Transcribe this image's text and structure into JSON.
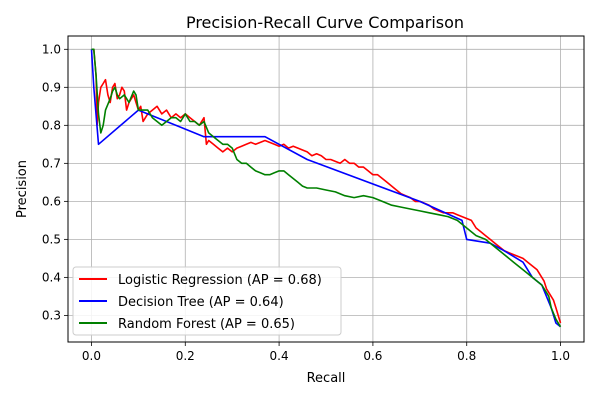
{
  "chart_data": {
    "type": "line",
    "title": "Precision-Recall Curve Comparison",
    "xlabel": "Recall",
    "ylabel": "Precision",
    "xlim": [
      -0.05,
      1.05
    ],
    "ylim": [
      0.23,
      1.035
    ],
    "xticks": [
      "0.0",
      "0.2",
      "0.4",
      "0.6",
      "0.8",
      "1.0"
    ],
    "yticks": [
      "0.3",
      "0.4",
      "0.5",
      "0.6",
      "0.7",
      "0.8",
      "0.9",
      "1.0"
    ],
    "grid": true,
    "legend_position": "lower-left",
    "series": [
      {
        "name": "Logistic Regression (AP = 0.68)",
        "color": "#ff0000",
        "x": [
          0.0,
          0.005,
          0.01,
          0.012,
          0.015,
          0.02,
          0.025,
          0.03,
          0.035,
          0.04,
          0.045,
          0.05,
          0.055,
          0.06,
          0.065,
          0.07,
          0.075,
          0.08,
          0.085,
          0.09,
          0.095,
          0.1,
          0.105,
          0.11,
          0.115,
          0.12,
          0.13,
          0.14,
          0.15,
          0.16,
          0.17,
          0.18,
          0.19,
          0.2,
          0.21,
          0.22,
          0.23,
          0.24,
          0.245,
          0.25,
          0.26,
          0.27,
          0.28,
          0.29,
          0.3,
          0.31,
          0.32,
          0.33,
          0.34,
          0.35,
          0.36,
          0.37,
          0.38,
          0.39,
          0.4,
          0.41,
          0.42,
          0.43,
          0.44,
          0.45,
          0.46,
          0.47,
          0.48,
          0.49,
          0.5,
          0.51,
          0.52,
          0.53,
          0.54,
          0.55,
          0.56,
          0.57,
          0.58,
          0.59,
          0.6,
          0.61,
          0.62,
          0.63,
          0.64,
          0.65,
          0.66,
          0.67,
          0.68,
          0.69,
          0.7,
          0.71,
          0.72,
          0.73,
          0.74,
          0.75,
          0.76,
          0.77,
          0.78,
          0.79,
          0.8,
          0.81,
          0.82,
          0.83,
          0.84,
          0.85,
          0.86,
          0.87,
          0.88,
          0.89,
          0.9,
          0.91,
          0.92,
          0.93,
          0.94,
          0.95,
          0.96,
          0.965,
          0.97,
          0.975,
          0.98,
          0.985,
          0.99,
          0.995,
          1.0
        ],
        "y": [
          1.0,
          1.0,
          0.93,
          0.8,
          0.86,
          0.9,
          0.91,
          0.92,
          0.88,
          0.86,
          0.9,
          0.91,
          0.87,
          0.88,
          0.9,
          0.89,
          0.84,
          0.86,
          0.87,
          0.88,
          0.86,
          0.84,
          0.85,
          0.81,
          0.82,
          0.83,
          0.84,
          0.85,
          0.83,
          0.84,
          0.82,
          0.83,
          0.82,
          0.83,
          0.82,
          0.81,
          0.8,
          0.82,
          0.75,
          0.76,
          0.75,
          0.74,
          0.73,
          0.74,
          0.73,
          0.74,
          0.745,
          0.75,
          0.755,
          0.75,
          0.755,
          0.76,
          0.755,
          0.75,
          0.745,
          0.75,
          0.74,
          0.745,
          0.74,
          0.735,
          0.73,
          0.72,
          0.725,
          0.72,
          0.71,
          0.71,
          0.705,
          0.7,
          0.71,
          0.7,
          0.7,
          0.69,
          0.69,
          0.68,
          0.67,
          0.67,
          0.66,
          0.65,
          0.64,
          0.63,
          0.62,
          0.615,
          0.61,
          0.6,
          0.6,
          0.595,
          0.59,
          0.58,
          0.575,
          0.57,
          0.57,
          0.57,
          0.565,
          0.56,
          0.555,
          0.55,
          0.53,
          0.52,
          0.51,
          0.5,
          0.49,
          0.48,
          0.47,
          0.465,
          0.46,
          0.455,
          0.45,
          0.44,
          0.43,
          0.42,
          0.4,
          0.39,
          0.37,
          0.36,
          0.35,
          0.34,
          0.32,
          0.3,
          0.28
        ]
      },
      {
        "name": "Decision Tree (AP = 0.64)",
        "color": "#0000ff",
        "x": [
          0.0,
          0.005,
          0.015,
          0.1,
          0.24,
          0.37,
          0.46,
          0.7,
          0.79,
          0.8,
          0.85,
          0.88,
          0.92,
          0.94,
          0.96,
          0.97,
          0.98,
          0.99,
          1.0
        ],
        "y": [
          1.0,
          0.9,
          0.75,
          0.84,
          0.77,
          0.77,
          0.71,
          0.6,
          0.55,
          0.5,
          0.49,
          0.47,
          0.44,
          0.4,
          0.38,
          0.35,
          0.32,
          0.28,
          0.27
        ]
      },
      {
        "name": "Random Forest (AP = 0.65)",
        "color": "#008000",
        "x": [
          0.0,
          0.005,
          0.01,
          0.015,
          0.02,
          0.025,
          0.03,
          0.04,
          0.045,
          0.05,
          0.055,
          0.06,
          0.07,
          0.08,
          0.09,
          0.095,
          0.1,
          0.11,
          0.12,
          0.13,
          0.14,
          0.15,
          0.16,
          0.17,
          0.18,
          0.19,
          0.2,
          0.21,
          0.22,
          0.23,
          0.24,
          0.25,
          0.26,
          0.27,
          0.28,
          0.29,
          0.3,
          0.31,
          0.32,
          0.33,
          0.34,
          0.35,
          0.36,
          0.37,
          0.38,
          0.39,
          0.4,
          0.41,
          0.42,
          0.43,
          0.44,
          0.45,
          0.46,
          0.47,
          0.48,
          0.5,
          0.52,
          0.54,
          0.56,
          0.58,
          0.6,
          0.62,
          0.64,
          0.66,
          0.68,
          0.7,
          0.72,
          0.74,
          0.76,
          0.78,
          0.8,
          0.82,
          0.84,
          0.86,
          0.88,
          0.9,
          0.92,
          0.94,
          0.95,
          0.96,
          0.97,
          0.975,
          0.98,
          0.99,
          1.0
        ],
        "y": [
          1.0,
          1.0,
          0.93,
          0.83,
          0.78,
          0.8,
          0.84,
          0.87,
          0.89,
          0.9,
          0.88,
          0.87,
          0.88,
          0.86,
          0.89,
          0.88,
          0.84,
          0.84,
          0.84,
          0.82,
          0.81,
          0.8,
          0.81,
          0.82,
          0.82,
          0.81,
          0.83,
          0.81,
          0.81,
          0.8,
          0.81,
          0.78,
          0.77,
          0.76,
          0.75,
          0.75,
          0.74,
          0.71,
          0.7,
          0.7,
          0.69,
          0.68,
          0.675,
          0.67,
          0.67,
          0.675,
          0.68,
          0.68,
          0.67,
          0.66,
          0.65,
          0.64,
          0.635,
          0.635,
          0.635,
          0.63,
          0.625,
          0.615,
          0.61,
          0.615,
          0.61,
          0.6,
          0.59,
          0.585,
          0.58,
          0.575,
          0.57,
          0.565,
          0.56,
          0.55,
          0.53,
          0.51,
          0.5,
          0.48,
          0.46,
          0.44,
          0.42,
          0.4,
          0.39,
          0.38,
          0.36,
          0.35,
          0.32,
          0.29,
          0.27
        ]
      }
    ]
  }
}
